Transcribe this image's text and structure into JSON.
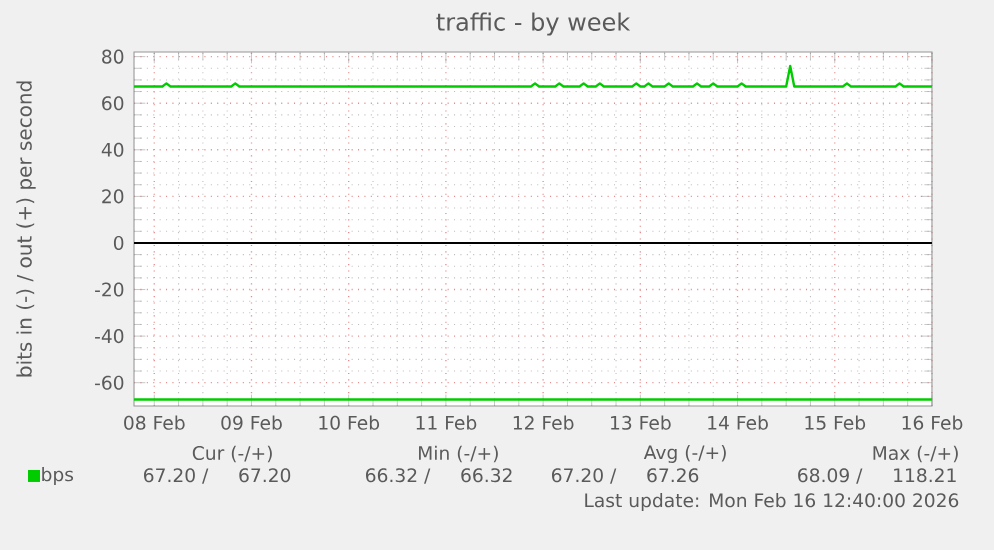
{
  "chart_data": {
    "type": "line",
    "title": "traffic - by week",
    "ylabel": "bits in (-) / out (+) per second",
    "xlim": [
      "2026-02-07T19:00",
      "2026-02-16T00:00"
    ],
    "ylim": [
      -70,
      82
    ],
    "xticks": [
      {
        "value": "2026-02-08",
        "label": "08 Feb"
      },
      {
        "value": "2026-02-09",
        "label": "09 Feb"
      },
      {
        "value": "2026-02-10",
        "label": "10 Feb"
      },
      {
        "value": "2026-02-11",
        "label": "11 Feb"
      },
      {
        "value": "2026-02-12",
        "label": "12 Feb"
      },
      {
        "value": "2026-02-13",
        "label": "13 Feb"
      },
      {
        "value": "2026-02-14",
        "label": "14 Feb"
      },
      {
        "value": "2026-02-15",
        "label": "15 Feb"
      },
      {
        "value": "2026-02-16",
        "label": "16 Feb"
      }
    ],
    "yticks": [
      -60,
      -40,
      -20,
      0,
      20,
      40,
      60,
      80
    ],
    "grid": true,
    "legend": "bottom",
    "ref_lines": [
      {
        "axis": "y",
        "value": 0,
        "color": "#000000"
      }
    ],
    "series": [
      {
        "color": "#00cc00",
        "x": [
          "2026-02-07T19:00",
          "2026-02-16T00:00"
        ],
        "values": [
          -67.2,
          -67.2
        ]
      },
      {
        "name": "bps",
        "color": "#00cc00",
        "x": [
          "2026-02-07T19:00",
          "2026-02-08T02:00",
          "2026-02-08T03:00",
          "2026-02-08T04:00",
          "2026-02-08T19:00",
          "2026-02-08T20:00",
          "2026-02-08T21:00",
          "2026-02-11T21:00",
          "2026-02-11T22:00",
          "2026-02-11T23:00",
          "2026-02-12T03:00",
          "2026-02-12T04:00",
          "2026-02-12T05:00",
          "2026-02-12T09:00",
          "2026-02-12T10:00",
          "2026-02-12T11:00",
          "2026-02-12T13:00",
          "2026-02-12T14:00",
          "2026-02-12T15:00",
          "2026-02-12T22:00",
          "2026-02-12T23:00",
          "2026-02-13T00:00",
          "2026-02-13T01:00",
          "2026-02-13T02:00",
          "2026-02-13T03:00",
          "2026-02-13T06:00",
          "2026-02-13T07:00",
          "2026-02-13T08:00",
          "2026-02-13T13:00",
          "2026-02-13T14:00",
          "2026-02-13T15:00",
          "2026-02-13T17:00",
          "2026-02-13T18:00",
          "2026-02-13T19:00",
          "2026-02-14T00:00",
          "2026-02-14T01:00",
          "2026-02-14T02:00",
          "2026-02-14T12:00",
          "2026-02-14T13:00",
          "2026-02-14T14:00",
          "2026-02-15T02:00",
          "2026-02-15T03:00",
          "2026-02-15T04:00",
          "2026-02-15T15:00",
          "2026-02-15T16:00",
          "2026-02-15T17:00",
          "2026-02-16T00:00"
        ],
        "values": [
          67.2,
          67.2,
          68.5,
          67.2,
          67.2,
          68.5,
          67.2,
          67.2,
          68.5,
          67.2,
          67.2,
          68.5,
          67.2,
          67.2,
          68.5,
          67.2,
          67.2,
          68.5,
          67.2,
          67.2,
          68.5,
          67.2,
          67.2,
          68.5,
          67.2,
          67.2,
          68.5,
          67.2,
          67.2,
          68.5,
          67.2,
          67.2,
          68.5,
          67.2,
          67.2,
          68.5,
          67.2,
          67.2,
          76,
          67.2,
          67.2,
          68.5,
          67.2,
          67.2,
          68.5,
          67.2,
          67.2
        ]
      }
    ],
    "annotations": [
      "Cur (-/+)",
      "Min (-/+)",
      "Avg (-/+)",
      "Max (-/+)",
      "67.20 /     67.20",
      "66.32 /     66.32",
      "67.20 /     67.26",
      "68.09 /     118.21",
      "Last update: Mon Feb 16 12:40:00 2026"
    ]
  }
}
